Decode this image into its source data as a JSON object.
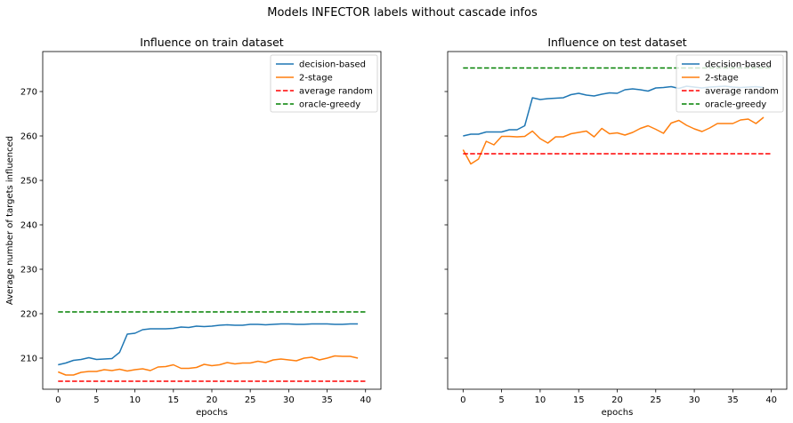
{
  "figure": {
    "suptitle": "Models INFECTOR labels without cascade infos"
  },
  "chart_data": [
    {
      "type": "line",
      "title": "Influence on train dataset",
      "xlabel": "epochs",
      "ylabel": "Average number of targets influenced",
      "xlim": [
        -2,
        42
      ],
      "ylim": [
        203,
        279
      ],
      "xticks": [
        0,
        5,
        10,
        15,
        20,
        25,
        30,
        35,
        40
      ],
      "yticks": [
        210,
        220,
        230,
        240,
        250,
        260,
        270
      ],
      "legend_position": "top-right",
      "x": [
        0,
        1,
        2,
        3,
        4,
        5,
        6,
        7,
        8,
        9,
        10,
        11,
        12,
        13,
        14,
        15,
        16,
        17,
        18,
        19,
        20,
        21,
        22,
        23,
        24,
        25,
        26,
        27,
        28,
        29,
        30,
        31,
        32,
        33,
        34,
        35,
        36,
        37,
        38,
        39,
        40
      ],
      "series": [
        {
          "name": "decision-based",
          "color": "#1f77b4",
          "style": "solid",
          "values": [
            208.5,
            208.9,
            209.5,
            209.7,
            210.1,
            209.7,
            209.8,
            209.9,
            211.3,
            215.4,
            215.6,
            216.4,
            216.6,
            216.6,
            216.6,
            216.7,
            217.0,
            216.9,
            217.2,
            217.1,
            217.2,
            217.4,
            217.5,
            217.4,
            217.4,
            217.6,
            217.6,
            217.5,
            217.6,
            217.7,
            217.7,
            217.6,
            217.6,
            217.7,
            217.7,
            217.7,
            217.6,
            217.6,
            217.7,
            217.7,
            null
          ]
        },
        {
          "name": "2-stage",
          "color": "#ff7f0e",
          "style": "solid",
          "values": [
            206.9,
            206.2,
            206.2,
            206.8,
            207.0,
            207.0,
            207.4,
            207.2,
            207.5,
            207.1,
            207.4,
            207.6,
            207.2,
            208.0,
            208.1,
            208.5,
            207.7,
            207.7,
            207.9,
            208.6,
            208.3,
            208.5,
            209.0,
            208.7,
            208.9,
            208.9,
            209.3,
            209.0,
            209.6,
            209.8,
            209.6,
            209.4,
            210.0,
            210.2,
            209.6,
            210.0,
            210.5,
            210.4,
            210.4,
            210.0,
            null
          ]
        },
        {
          "name": "average random",
          "color": "#ff0000",
          "style": "dashed",
          "values": [
            204.8,
            204.8,
            204.8,
            204.8,
            204.8,
            204.8,
            204.8,
            204.8,
            204.8,
            204.8,
            204.8,
            204.8,
            204.8,
            204.8,
            204.8,
            204.8,
            204.8,
            204.8,
            204.8,
            204.8,
            204.8,
            204.8,
            204.8,
            204.8,
            204.8,
            204.8,
            204.8,
            204.8,
            204.8,
            204.8,
            204.8,
            204.8,
            204.8,
            204.8,
            204.8,
            204.8,
            204.8,
            204.8,
            204.8,
            204.8,
            204.8
          ]
        },
        {
          "name": "oracle-greedy",
          "color": "#008000",
          "style": "dashed",
          "values": [
            220.4,
            220.4,
            220.4,
            220.4,
            220.4,
            220.4,
            220.4,
            220.4,
            220.4,
            220.4,
            220.4,
            220.4,
            220.4,
            220.4,
            220.4,
            220.4,
            220.4,
            220.4,
            220.4,
            220.4,
            220.4,
            220.4,
            220.4,
            220.4,
            220.4,
            220.4,
            220.4,
            220.4,
            220.4,
            220.4,
            220.4,
            220.4,
            220.4,
            220.4,
            220.4,
            220.4,
            220.4,
            220.4,
            220.4,
            220.4,
            220.4
          ]
        }
      ]
    },
    {
      "type": "line",
      "title": "Influence on test dataset",
      "xlabel": "epochs",
      "ylabel": "",
      "xlim": [
        -2,
        42
      ],
      "ylim": [
        203,
        279
      ],
      "xticks": [
        0,
        5,
        10,
        15,
        20,
        25,
        30,
        35,
        40
      ],
      "yticks": [
        210,
        220,
        230,
        240,
        250,
        260,
        270
      ],
      "show_ytick_labels": false,
      "legend_position": "top-right",
      "x": [
        0,
        1,
        2,
        3,
        4,
        5,
        6,
        7,
        8,
        9,
        10,
        11,
        12,
        13,
        14,
        15,
        16,
        17,
        18,
        19,
        20,
        21,
        22,
        23,
        24,
        25,
        26,
        27,
        28,
        29,
        30,
        31,
        32,
        33,
        34,
        35,
        36,
        37,
        38,
        39,
        40
      ],
      "series": [
        {
          "name": "decision-based",
          "color": "#1f77b4",
          "style": "solid",
          "values": [
            260.0,
            260.4,
            260.4,
            260.9,
            260.9,
            260.9,
            261.4,
            261.4,
            262.3,
            268.6,
            268.2,
            268.4,
            268.5,
            268.6,
            269.3,
            269.6,
            269.2,
            269.0,
            269.4,
            269.7,
            269.6,
            270.4,
            270.6,
            270.4,
            270.1,
            270.8,
            270.9,
            271.1,
            270.7,
            271.2,
            271.0,
            270.8,
            271.0,
            271.1,
            271.2,
            271.0,
            270.9,
            271.0,
            271.1,
            270.9,
            null
          ]
        },
        {
          "name": "2-stage",
          "color": "#ff7f0e",
          "style": "solid",
          "values": [
            256.9,
            253.7,
            254.8,
            258.8,
            258.0,
            259.9,
            259.9,
            259.8,
            259.9,
            261.1,
            259.4,
            258.4,
            259.8,
            259.8,
            260.5,
            260.8,
            261.1,
            259.8,
            261.7,
            260.5,
            260.7,
            260.2,
            260.8,
            261.7,
            262.3,
            261.5,
            260.6,
            262.9,
            263.5,
            262.4,
            261.6,
            261.0,
            261.8,
            262.8,
            262.8,
            262.8,
            263.6,
            263.8,
            262.8,
            264.2,
            null
          ]
        },
        {
          "name": "average random",
          "color": "#ff0000",
          "style": "dashed",
          "values": [
            256.0,
            256.0,
            256.0,
            256.0,
            256.0,
            256.0,
            256.0,
            256.0,
            256.0,
            256.0,
            256.0,
            256.0,
            256.0,
            256.0,
            256.0,
            256.0,
            256.0,
            256.0,
            256.0,
            256.0,
            256.0,
            256.0,
            256.0,
            256.0,
            256.0,
            256.0,
            256.0,
            256.0,
            256.0,
            256.0,
            256.0,
            256.0,
            256.0,
            256.0,
            256.0,
            256.0,
            256.0,
            256.0,
            256.0,
            256.0,
            256.0
          ]
        },
        {
          "name": "oracle-greedy",
          "color": "#008000",
          "style": "dashed",
          "values": [
            275.3,
            275.3,
            275.3,
            275.3,
            275.3,
            275.3,
            275.3,
            275.3,
            275.3,
            275.3,
            275.3,
            275.3,
            275.3,
            275.3,
            275.3,
            275.3,
            275.3,
            275.3,
            275.3,
            275.3,
            275.3,
            275.3,
            275.3,
            275.3,
            275.3,
            275.3,
            275.3,
            275.3,
            275.3,
            275.3,
            275.3,
            275.3,
            275.3,
            275.3,
            275.3,
            275.3,
            275.3,
            275.3,
            275.3,
            275.3,
            275.3
          ]
        }
      ]
    }
  ]
}
